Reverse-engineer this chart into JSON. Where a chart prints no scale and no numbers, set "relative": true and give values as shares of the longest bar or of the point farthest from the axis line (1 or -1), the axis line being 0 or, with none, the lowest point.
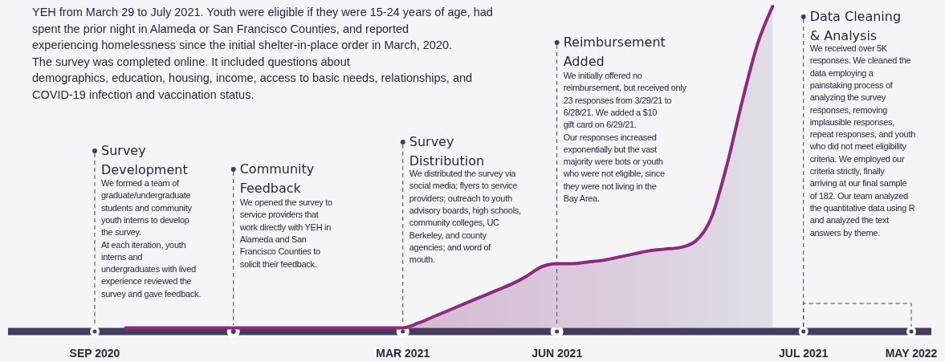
{
  "chart_data": {
    "type": "area",
    "relative": true,
    "color": "#8b2a7f",
    "categories": [
      "SEP 2020",
      null,
      null,
      null,
      null,
      null,
      null,
      null,
      null,
      null,
      null,
      null,
      null,
      null,
      null,
      null,
      null,
      null,
      null,
      null,
      "MAR 2021",
      null,
      null,
      null,
      null,
      null,
      null,
      null,
      null,
      null,
      "JUN 2021",
      null,
      null,
      null,
      null,
      null,
      null,
      null,
      null,
      null,
      null,
      null,
      null,
      null,
      null,
      null,
      "JUL 2021",
      null,
      null,
      null,
      null,
      null,
      null,
      "MAY 2022"
    ],
    "values": [
      null,
      null,
      0,
      0,
      0,
      0,
      0,
      0,
      0,
      0,
      0,
      0,
      0,
      0,
      0,
      0,
      0,
      0,
      0,
      0,
      0,
      0.015,
      0.035,
      0.055,
      0.075,
      0.095,
      0.115,
      0.135,
      0.16,
      0.19,
      0.2,
      0.2,
      0.205,
      0.21,
      0.22,
      0.23,
      0.24,
      0.245,
      0.25,
      0.27,
      0.34,
      0.5,
      0.7,
      0.88,
      1,
      null,
      null,
      null,
      null,
      null,
      null,
      null,
      null,
      null
    ],
    "annotations": [
      "YEH from March 29 to July 2021. Youth were eligible if they were 15-24 years of age, had\nspent the prior night in Alameda or San Francisco Counties, and reported\nexperiencing homelessness since the initial shelter-in-place order in March, 2020.\nThe survey was completed online. It included questions about\ndemographics, education, housing, income, access to basic needs, relationships, and\nCOVID-19 infection and vaccination status.",
      "Survey\nDevelopment",
      "We formed a team of\ngraduate/undergraduate\nstudents and community\nyouth interns to develop\nthe survey.\nAt each iteration, youth\ninterns and\nundergraduates with lived\nexperience reviewed the\nsurvey and gave feedback.",
      "Community\nFeedback",
      "We opened the survey to\nservice providers that\nwork directly with YEH in\nAlameda and San\nFrancisco Counties to\nsolicit their feedback.",
      "Survey\nDistribution",
      "We distributed the survey via\nsocial media; flyers to service\nproviders; outreach to youth\nadvisory boards, high schools,\ncommunity colleges, UC\nBerkeley, and county\nagencies; and word of\nmouth.",
      "Reimbursement\nAdded",
      "We initially offered no\nreimbursement, but received only\n23 responses from 3/29/21 to\n6/28/21. We added a $10\ngift card on 6/29/21.\nOur responses increased\nexponentially but the vast\nmajority were bots or youth\nwho were not eligible, since\nthey were not living in the\nBay Area.",
      "Data Cleaning\n& Analysis",
      "We received over 5K\nresponses. We cleaned the\ndata employing a\npainstaking process of\nanalyzing the survey\nresponses, removing\nimplausible responses,\nrepeat responses, and youth\nwho did not meet eligibility\ncriteria. We employed our\ncriteria strictly, finally\narriving at our final sample\nof 182. Our team analyzed\nthe quantitative data using R\nand analyzed the text\nanswers by theme."
    ]
  }
}
